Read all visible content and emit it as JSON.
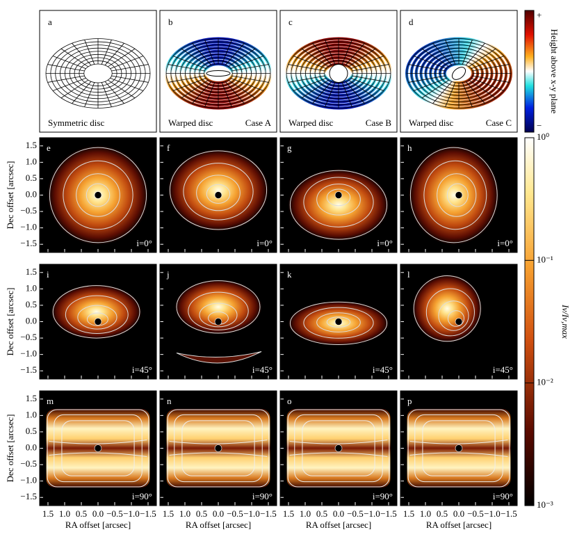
{
  "top_panels": [
    {
      "letter": "a",
      "label": "Symmetric disc"
    },
    {
      "letter": "b",
      "label": "Warped disc",
      "case": "Case A"
    },
    {
      "letter": "c",
      "label": "Warped disc",
      "case": "Case B"
    },
    {
      "letter": "d",
      "label": "Warped disc",
      "case": "Case C"
    }
  ],
  "height_colorbar": {
    "label": "Height above x-y plane",
    "max_label": "+",
    "min_label": "−"
  },
  "image_panels": [
    {
      "letter": "e",
      "inclination": "i=0°"
    },
    {
      "letter": "f",
      "inclination": "i=0°"
    },
    {
      "letter": "g",
      "inclination": "i=0°"
    },
    {
      "letter": "h",
      "inclination": "i=0°"
    },
    {
      "letter": "i",
      "inclination": "i=45°"
    },
    {
      "letter": "j",
      "inclination": "i=45°"
    },
    {
      "letter": "k",
      "inclination": "i=45°"
    },
    {
      "letter": "l",
      "inclination": "i=45°"
    },
    {
      "letter": "m",
      "inclination": "i=90°"
    },
    {
      "letter": "n",
      "inclination": "i=90°"
    },
    {
      "letter": "o",
      "inclination": "i=90°"
    },
    {
      "letter": "p",
      "inclination": "i=90°"
    }
  ],
  "axes": {
    "xlabel": "RA offset [arcsec]",
    "ylabel": "Dec offset [arcsec]",
    "xlim": [
      1.75,
      -1.75
    ],
    "ylim": [
      -1.75,
      1.75
    ],
    "xticks": [
      {
        "value": 1.5,
        "label": "1.5"
      },
      {
        "value": 1.0,
        "label": "1.0"
      },
      {
        "value": 0.5,
        "label": "0.5"
      },
      {
        "value": 0.0,
        "label": "0.0"
      },
      {
        "value": -0.5,
        "label": "−0.5"
      },
      {
        "value": -1.0,
        "label": "−1.0"
      },
      {
        "value": -1.5,
        "label": "−1.5"
      }
    ],
    "yticks": [
      {
        "value": 1.5,
        "label": "1.5"
      },
      {
        "value": 1.0,
        "label": "1.0"
      },
      {
        "value": 0.5,
        "label": "0.5"
      },
      {
        "value": 0.0,
        "label": "0.0"
      },
      {
        "value": -0.5,
        "label": "−0.5"
      },
      {
        "value": -1.0,
        "label": "−1.0"
      },
      {
        "value": -1.5,
        "label": "−1.5"
      }
    ]
  },
  "intensity_colorbar": {
    "label": "Iν/Iν,max",
    "log": true,
    "ylim": [
      0.001,
      1
    ],
    "ticks": [
      {
        "value": 1,
        "label": "10⁰"
      },
      {
        "value": 0.1,
        "label": "10⁻¹"
      },
      {
        "value": 0.01,
        "label": "10⁻²"
      },
      {
        "value": 0.001,
        "label": "10⁻³"
      }
    ]
  }
}
